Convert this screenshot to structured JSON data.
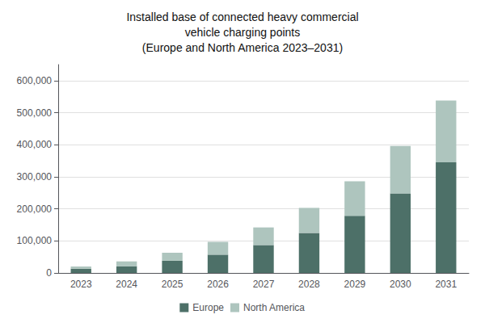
{
  "chart_data": {
    "type": "bar",
    "title": "Installed base of connected heavy commercial\nvehicle charging points\n(Europe and North America 2023–2031)",
    "categories": [
      "2023",
      "2024",
      "2025",
      "2026",
      "2027",
      "2028",
      "2029",
      "2030",
      "2031"
    ],
    "series": [
      {
        "name": "Europe",
        "color": "#4d7068",
        "values": [
          13000,
          21000,
          38000,
          57000,
          87000,
          125000,
          178000,
          248000,
          345000
        ]
      },
      {
        "name": "North America",
        "color": "#aec5be",
        "values": [
          7000,
          15000,
          25000,
          40000,
          55000,
          78000,
          108000,
          148000,
          193000
        ]
      }
    ],
    "stacked": true,
    "ylim": [
      0,
      650000
    ],
    "yticks": [
      0,
      {
        "value": 100000,
        "label": "100,000"
      },
      {
        "value": 200000,
        "label": "200,000"
      },
      {
        "value": 300000,
        "label": "300,000"
      },
      {
        "value": 400000,
        "label": "400,000"
      },
      {
        "value": 500000,
        "label": "500,000"
      },
      {
        "value": 600000,
        "label": "600,000"
      }
    ],
    "grid": true,
    "legend": "bottom"
  }
}
